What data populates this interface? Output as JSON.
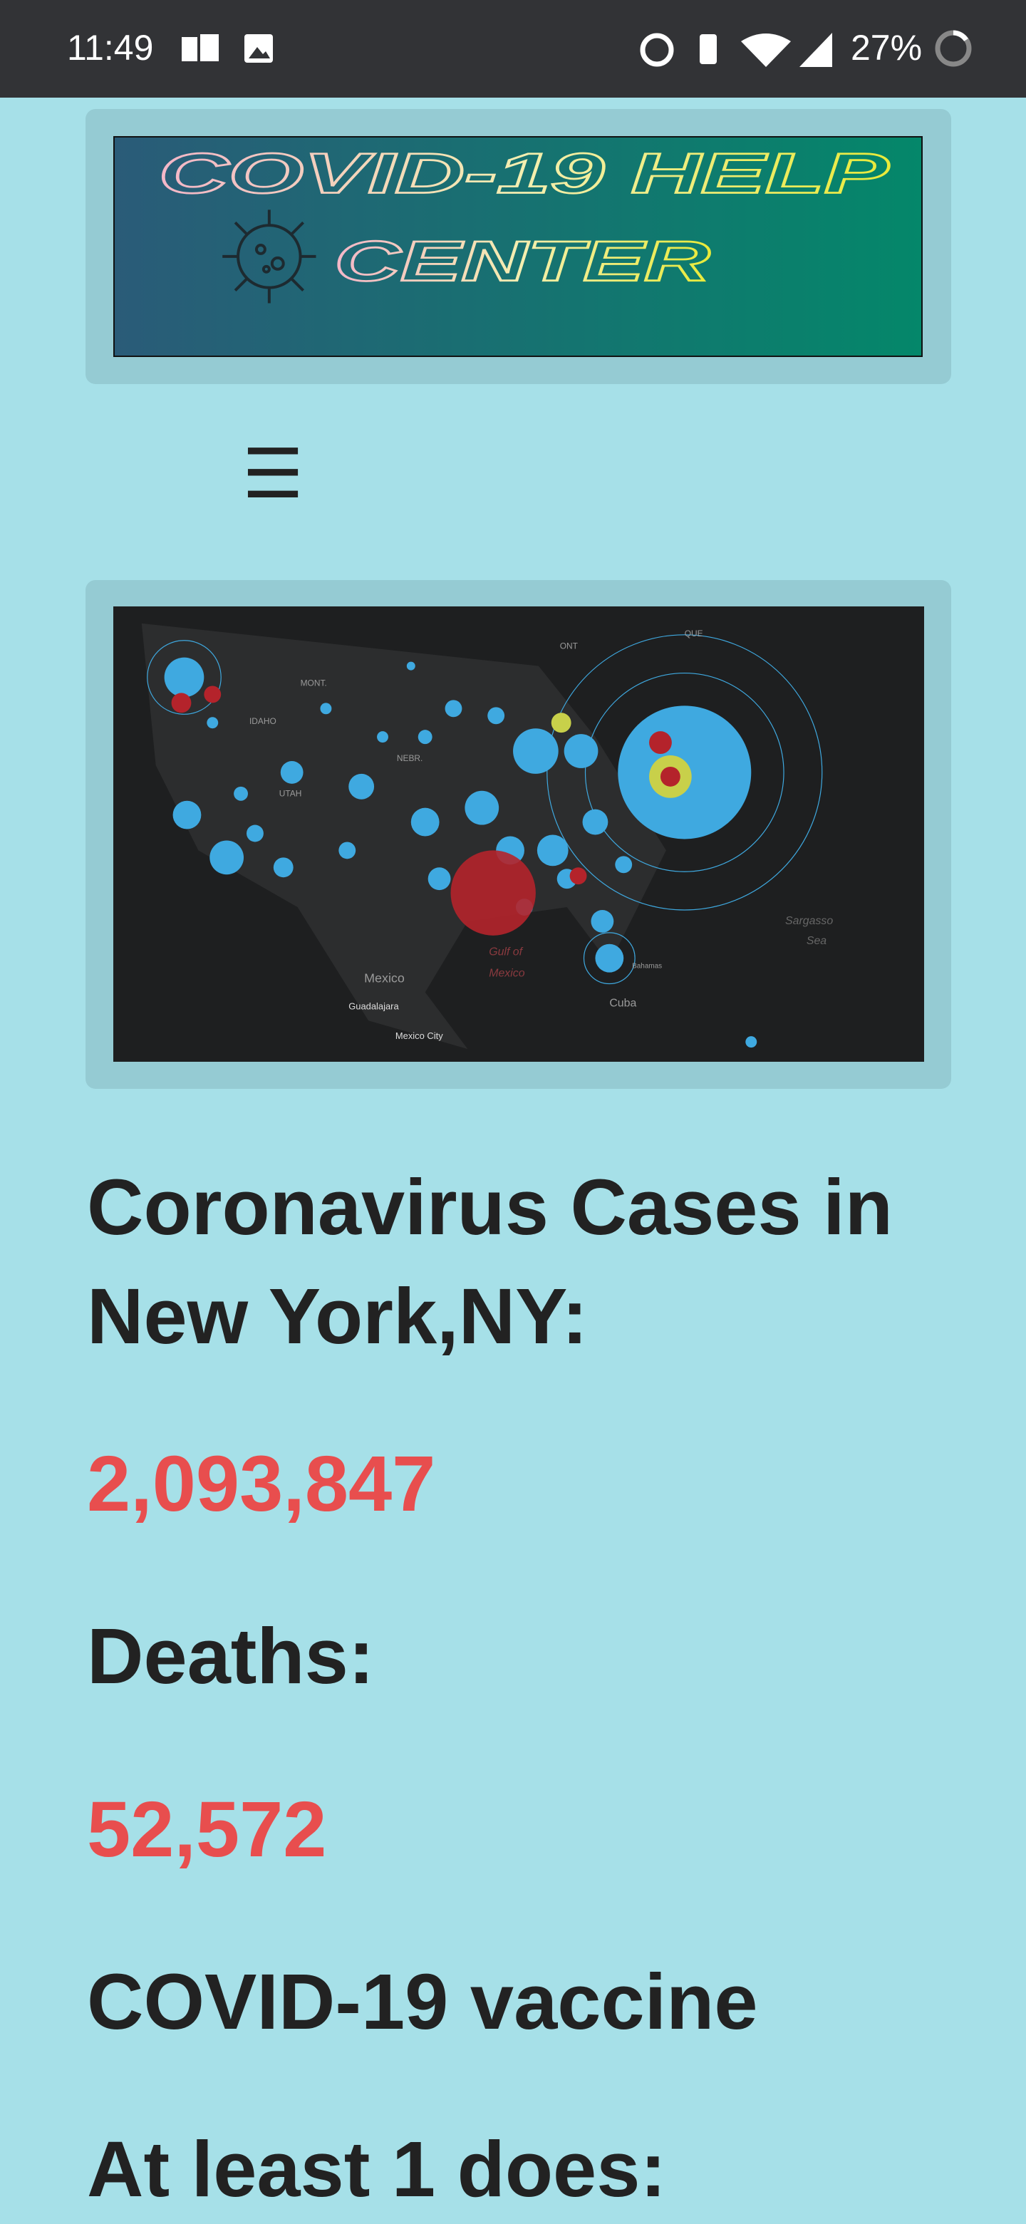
{
  "status_bar": {
    "time": "11:49",
    "battery": "27%"
  },
  "logo": {
    "line1": "COVID-19 HELP",
    "line2": "CENTER"
  },
  "map": {
    "labels": [
      "ONT",
      "QUE",
      "MONT.",
      "IDAHO",
      "UTAH",
      "NEBR.",
      "Mexico",
      "Guadalajara",
      "Mexico City",
      "Gulf of",
      "Mexico",
      "Sargasso",
      "Sea",
      "Cuba",
      "Bahamas"
    ]
  },
  "content": {
    "cases_heading": "Coronavirus Cases in New York,NY:",
    "cases": "2,093,847",
    "deaths_heading": "Deaths:",
    "deaths": "52,572",
    "vaccine_heading": "COVID-19 vaccine",
    "first_dose_heading": "At least 1 does:"
  }
}
